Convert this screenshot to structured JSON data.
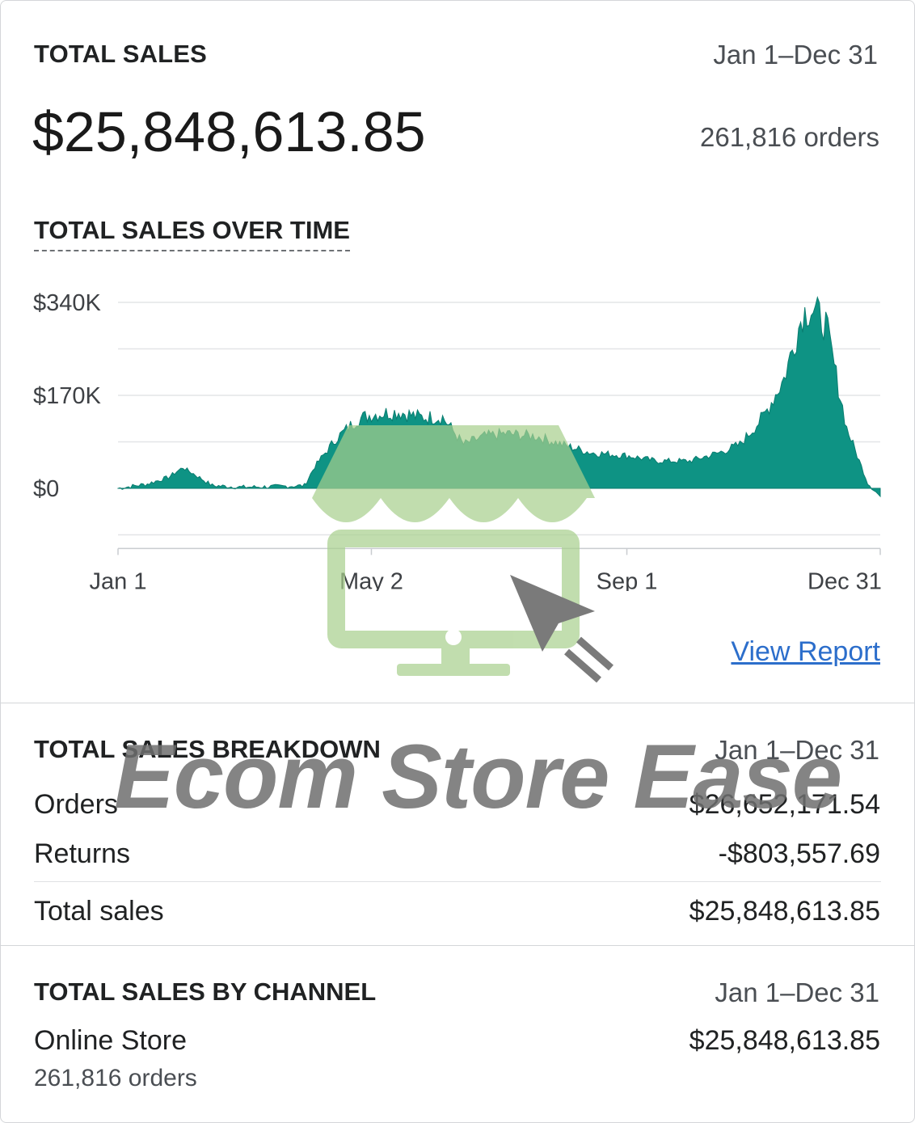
{
  "header": {
    "title": "TOTAL SALES",
    "date_range": "Jan 1–Dec 31",
    "amount": "$25,848,613.85",
    "orders": "261,816 orders"
  },
  "chart_section": {
    "title": "TOTAL SALES OVER TIME",
    "view_report": "View Report"
  },
  "chart_data": {
    "type": "area",
    "title": "TOTAL SALES OVER TIME",
    "xlabel": "",
    "ylabel": "",
    "x_ticks": [
      "Jan 1",
      "May 2",
      "Sep 1",
      "Dec 31"
    ],
    "y_ticks": [
      "$0",
      "$170K",
      "$340K"
    ],
    "ylim": [
      -170000,
      390000
    ],
    "grid": true,
    "color": "#0e9384",
    "series": [
      {
        "values": [
          {
            "x": "Jan 1",
            "y": 0
          },
          {
            "x": "Jan 15",
            "y": 8000
          },
          {
            "x": "Jan 25",
            "y": 20000
          },
          {
            "x": "Feb 1",
            "y": 38000
          },
          {
            "x": "Feb 8",
            "y": 22000
          },
          {
            "x": "Feb 15",
            "y": 5000
          },
          {
            "x": "Mar 1",
            "y": 2000
          },
          {
            "x": "Mar 15",
            "y": 3000
          },
          {
            "x": "Mar 31",
            "y": 5000
          },
          {
            "x": "Apr 5",
            "y": 40000
          },
          {
            "x": "Apr 15",
            "y": 90000
          },
          {
            "x": "Apr 25",
            "y": 125000
          },
          {
            "x": "May 2",
            "y": 135000
          },
          {
            "x": "May 15",
            "y": 140000
          },
          {
            "x": "May 25",
            "y": 130000
          },
          {
            "x": "Jun 5",
            "y": 130000
          },
          {
            "x": "Jun 15",
            "y": 80000
          },
          {
            "x": "Jun 25",
            "y": 95000
          },
          {
            "x": "Jul 5",
            "y": 100000
          },
          {
            "x": "Jul 20",
            "y": 95000
          },
          {
            "x": "Aug 1",
            "y": 80000
          },
          {
            "x": "Aug 15",
            "y": 65000
          },
          {
            "x": "Sep 1",
            "y": 60000
          },
          {
            "x": "Sep 15",
            "y": 50000
          },
          {
            "x": "Oct 1",
            "y": 50000
          },
          {
            "x": "Oct 15",
            "y": 65000
          },
          {
            "x": "Oct 25",
            "y": 80000
          },
          {
            "x": "Nov 5",
            "y": 130000
          },
          {
            "x": "Nov 15",
            "y": 200000
          },
          {
            "x": "Nov 24",
            "y": 320000
          },
          {
            "x": "Nov 28",
            "y": 330000
          },
          {
            "x": "Dec 5",
            "y": 300000
          },
          {
            "x": "Dec 15",
            "y": 110000
          },
          {
            "x": "Dec 25",
            "y": 10000
          },
          {
            "x": "Dec 31",
            "y": -15000
          }
        ]
      }
    ]
  },
  "breakdown": {
    "title": "TOTAL SALES BREAKDOWN",
    "date_range": "Jan 1–Dec 31",
    "rows": [
      {
        "label": "Orders",
        "value": "$26,652,171.54"
      },
      {
        "label": "Returns",
        "value": "-$803,557.69"
      },
      {
        "label": "Total sales",
        "value": "$25,848,613.85"
      }
    ]
  },
  "channel": {
    "title": "TOTAL SALES BY CHANNEL",
    "date_range": "Jan 1–Dec 31",
    "name": "Online Store",
    "value": "$25,848,613.85",
    "orders": "261,816 orders"
  },
  "watermark": {
    "text": "Ecom Store Ease",
    "colors": {
      "store": "#a8d08d",
      "cursor": "#7a7a7a"
    }
  }
}
